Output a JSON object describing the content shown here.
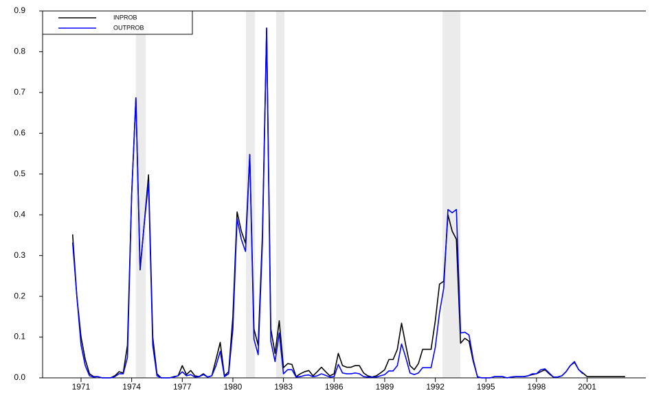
{
  "chart_data": {
    "type": "line",
    "x": [
      1970.5,
      1970.75,
      1971,
      1971.25,
      1971.5,
      1971.75,
      1972,
      1972.25,
      1972.5,
      1972.75,
      1973,
      1973.25,
      1973.5,
      1973.75,
      1974,
      1974.25,
      1974.5,
      1974.75,
      1975,
      1975.25,
      1975.5,
      1975.75,
      1976,
      1976.25,
      1976.5,
      1976.75,
      1977,
      1977.25,
      1977.5,
      1977.75,
      1978,
      1978.25,
      1978.5,
      1978.75,
      1979,
      1979.25,
      1979.5,
      1979.75,
      1980,
      1980.25,
      1980.5,
      1980.75,
      1981,
      1981.25,
      1981.5,
      1981.75,
      1982,
      1982.25,
      1982.5,
      1982.75,
      1983,
      1983.25,
      1983.5,
      1983.75,
      1984,
      1984.25,
      1984.5,
      1984.75,
      1985,
      1985.25,
      1985.5,
      1985.75,
      1986,
      1986.25,
      1986.5,
      1986.75,
      1987,
      1987.25,
      1987.5,
      1987.75,
      1988,
      1988.25,
      1988.5,
      1988.75,
      1989,
      1989.25,
      1989.5,
      1989.75,
      1990,
      1990.25,
      1990.5,
      1990.75,
      1991,
      1991.25,
      1991.5,
      1991.75,
      1992,
      1992.25,
      1992.5,
      1992.75,
      1993,
      1993.25,
      1993.5,
      1993.75,
      1994,
      1994.25,
      1994.5,
      1994.75,
      1995,
      1995.25,
      1995.5,
      1995.75,
      1996,
      1996.25,
      1996.5,
      1996.75,
      1997,
      1997.25,
      1997.5,
      1997.75,
      1998,
      1998.25,
      1998.5,
      1998.75,
      1999,
      1999.25,
      1999.5,
      1999.75,
      2000,
      2000.25,
      2000.5,
      2000.75,
      2001,
      2001.25,
      2001.5,
      2001.75,
      2002,
      2002.25,
      2002.5,
      2002.75,
      2003,
      2003.25
    ],
    "series": [
      {
        "name": "INPROB",
        "color": "#000000",
        "values": [
          0.352,
          0.2,
          0.1,
          0.045,
          0.01,
          0.003,
          0.003,
          0,
          0,
          0,
          0.005,
          0.015,
          0.012,
          0.08,
          0.45,
          0.687,
          0.265,
          0.38,
          0.498,
          0.1,
          0.01,
          0,
          0,
          0,
          0.003,
          0.005,
          0.03,
          0.008,
          0.018,
          0.005,
          0.003,
          0.01,
          0.002,
          0.005,
          0.045,
          0.087,
          0.005,
          0.015,
          0.15,
          0.407,
          0.36,
          0.33,
          0.548,
          0.12,
          0.08,
          0.35,
          0.858,
          0.12,
          0.06,
          0.14,
          0.025,
          0.035,
          0.033,
          0.003,
          0.01,
          0.015,
          0.018,
          0.005,
          0.015,
          0.026,
          0.015,
          0.005,
          0.01,
          0.06,
          0.03,
          0.026,
          0.026,
          0.03,
          0.03,
          0.012,
          0.005,
          0.002,
          0.005,
          0.012,
          0.02,
          0.045,
          0.045,
          0.07,
          0.134,
          0.08,
          0.03,
          0.02,
          0.035,
          0.07,
          0.07,
          0.07,
          0.14,
          0.23,
          0.237,
          0.4,
          0.36,
          0.34,
          0.085,
          0.097,
          0.09,
          0.04,
          0.003,
          0,
          0,
          0,
          0.003,
          0.003,
          0.003,
          0,
          0.002,
          0.003,
          0.003,
          0.003,
          0.005,
          0.008,
          0.01,
          0.015,
          0.02,
          0.01,
          0.002,
          0.002,
          0.005,
          0.015,
          0.03,
          0.038,
          0.02,
          0.012,
          0.003,
          0.003,
          0.003,
          0.003,
          0.003,
          0.003,
          0.003,
          0.003,
          0.003,
          0.003
        ]
      },
      {
        "name": "OUTPROB",
        "color": "#0000ff",
        "values": [
          0.332,
          0.2,
          0.08,
          0.03,
          0.005,
          0.002,
          0.003,
          0,
          0,
          0,
          0.003,
          0.01,
          0.01,
          0.05,
          0.45,
          0.687,
          0.265,
          0.38,
          0.48,
          0.08,
          0.005,
          0,
          0,
          0,
          0.002,
          0.005,
          0.015,
          0.005,
          0.008,
          0.002,
          0.003,
          0.008,
          0.002,
          0.005,
          0.03,
          0.065,
          0.003,
          0.01,
          0.12,
          0.39,
          0.34,
          0.31,
          0.548,
          0.095,
          0.057,
          0.33,
          0.858,
          0.09,
          0.04,
          0.11,
          0.01,
          0.02,
          0.02,
          0.002,
          0.003,
          0.006,
          0.007,
          0.003,
          0.005,
          0.01,
          0.006,
          0.002,
          0.003,
          0.033,
          0.012,
          0.01,
          0.01,
          0.012,
          0.01,
          0.003,
          0.002,
          0.002,
          0.002,
          0.005,
          0.008,
          0.017,
          0.017,
          0.03,
          0.083,
          0.05,
          0.012,
          0.008,
          0.012,
          0.025,
          0.025,
          0.025,
          0.075,
          0.16,
          0.22,
          0.413,
          0.405,
          0.413,
          0.11,
          0.112,
          0.105,
          0.045,
          0.002,
          0,
          0,
          0,
          0.003,
          0.003,
          0.003,
          0,
          0.002,
          0.003,
          0.003,
          0.003,
          0.005,
          0.01,
          0.01,
          0.02,
          0.022,
          0.012,
          0.002,
          0.002,
          0.005,
          0.015,
          0.03,
          0.04,
          0.02,
          0.01,
          null,
          null,
          null,
          null,
          null,
          null,
          null,
          null,
          null,
          null
        ]
      }
    ],
    "shaded_regions": [
      [
        1974.25,
        1974.83
      ],
      [
        1980.78,
        1981.31
      ],
      [
        1982.57,
        1983.06
      ],
      [
        1992.43,
        1993.49
      ]
    ],
    "shade_color": "#ebebeb",
    "xlim": [
      1968.72,
      2004.48
    ],
    "xticks": [
      1971,
      1974,
      1977,
      1980,
      1983,
      1986,
      1989,
      1992,
      1995,
      1998,
      2001
    ],
    "ylim": [
      0,
      0.9
    ],
    "yticks": [
      {
        "value": 0,
        "label": "0.0"
      },
      0.1,
      0.2,
      0.3,
      0.4,
      0.5,
      0.6,
      0.7,
      0.8,
      0.9
    ],
    "legend": "upper left"
  }
}
